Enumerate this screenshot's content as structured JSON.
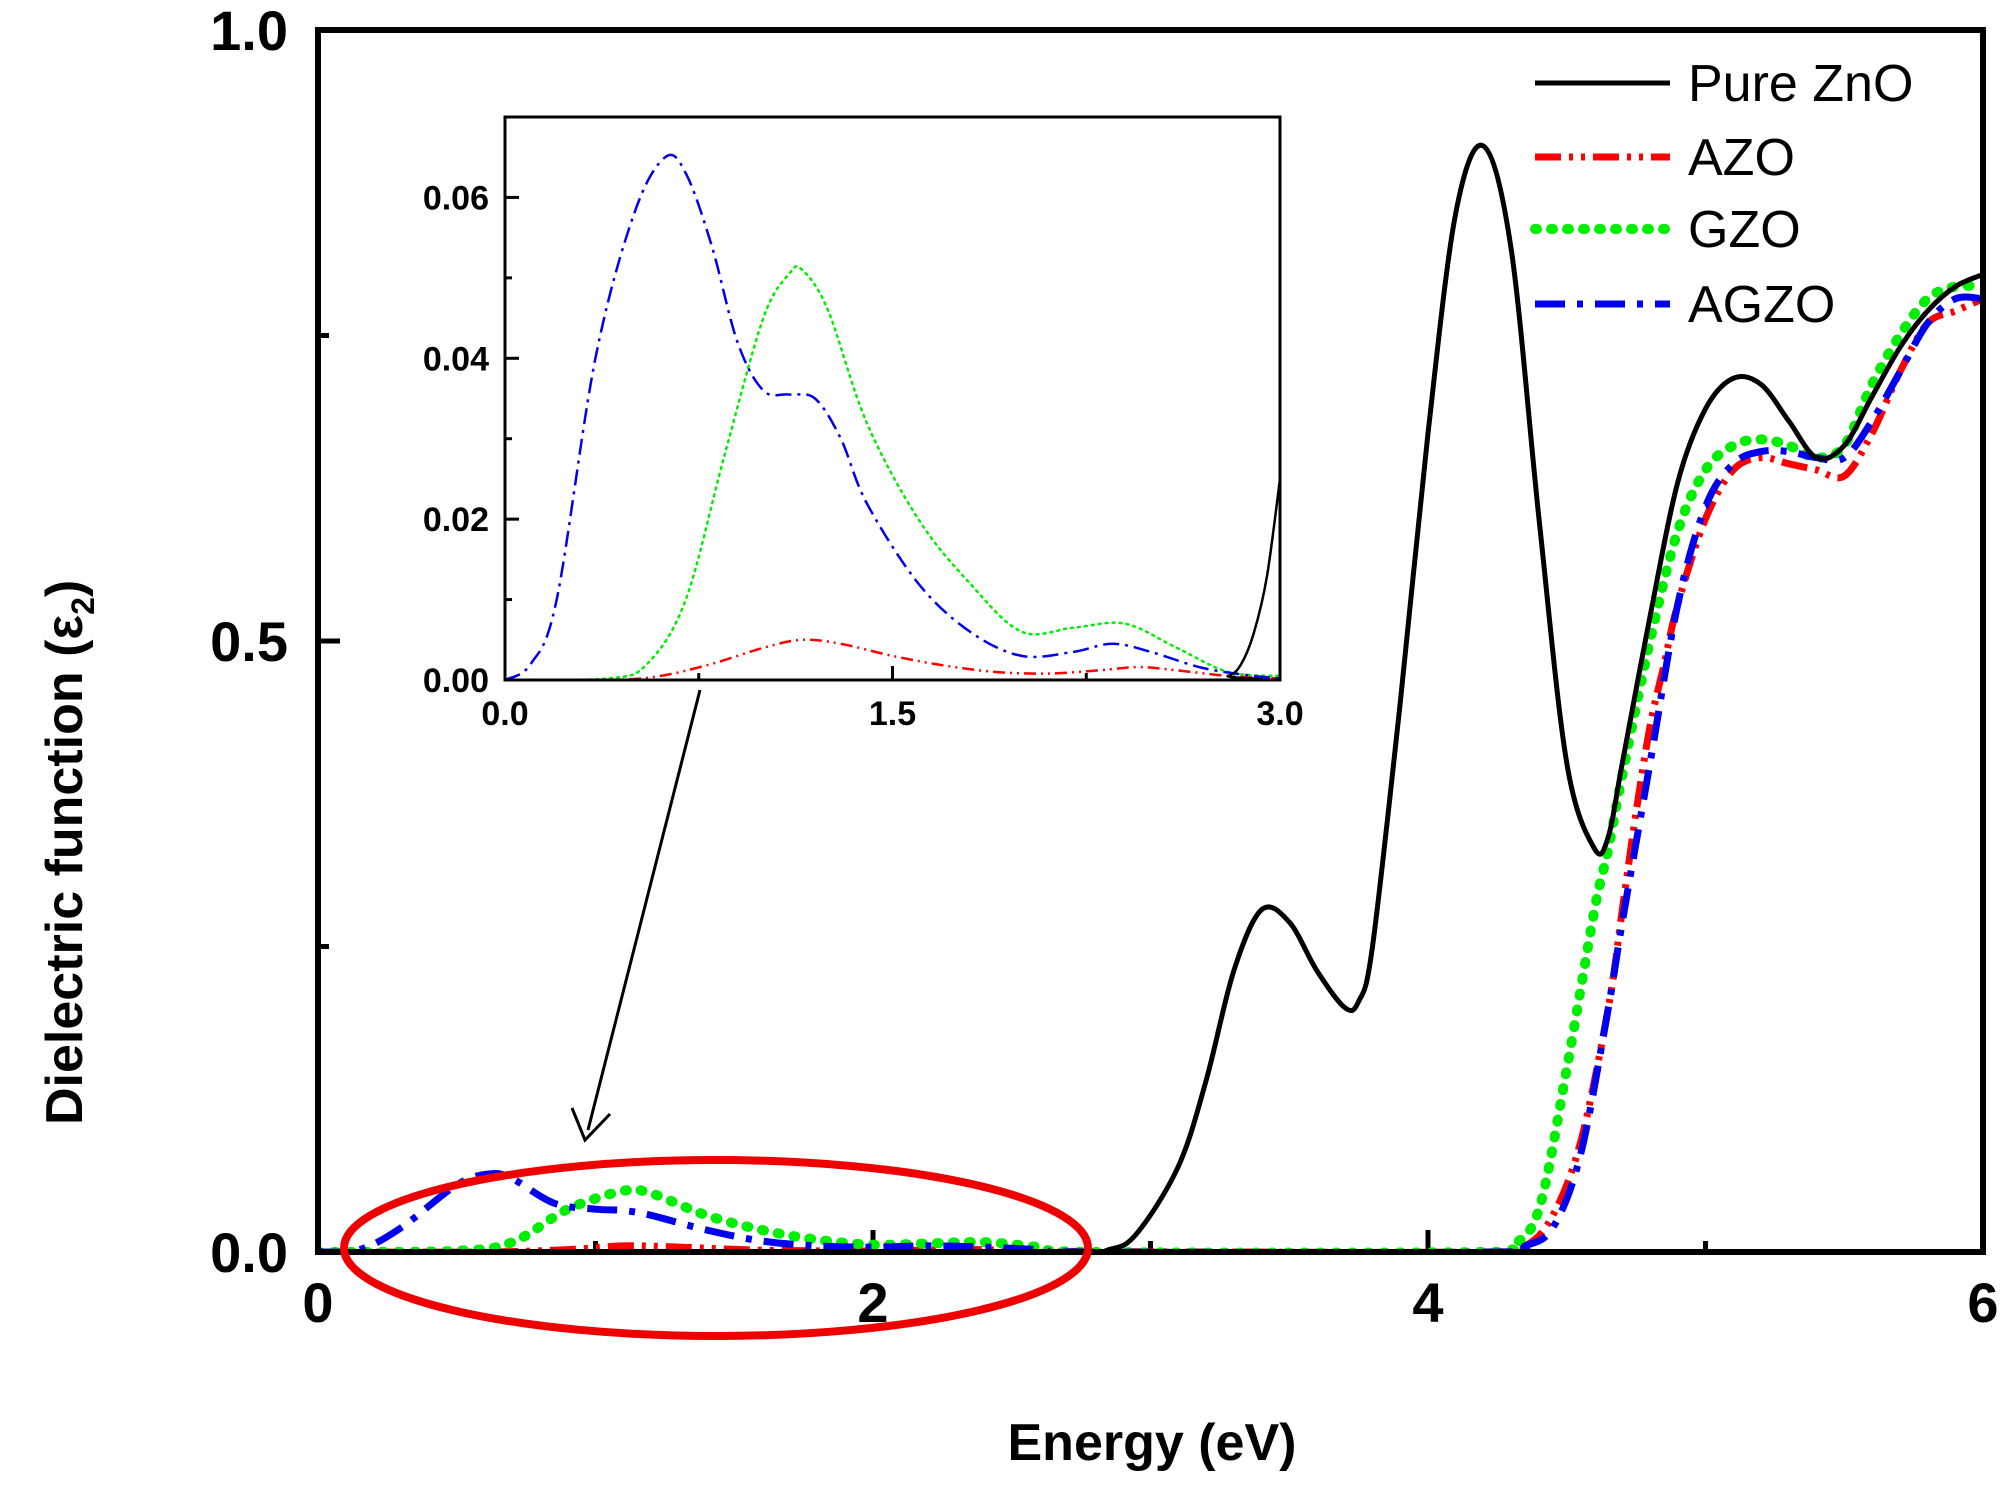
{
  "chart_data": [
    {
      "type": "line",
      "role": "main",
      "xlabel": "Energy (eV)",
      "ylabel_main": "Dielectric function (ε",
      "ylabel_sub": "2",
      "ylabel_close": ")",
      "xlim": [
        0,
        6
      ],
      "ylim": [
        0,
        1.0
      ],
      "xticks": [
        0,
        2,
        4,
        6
      ],
      "xtick_labels": [
        "0",
        "2",
        "4",
        "6"
      ],
      "yticks": [
        0.0,
        0.5,
        1.0
      ],
      "ytick_labels": [
        "0.0",
        "0.5",
        "1.0"
      ],
      "legend_position": "top-right",
      "series": [
        {
          "name": "Pure ZnO",
          "color": "#000000",
          "dash": "solid",
          "x": [
            0.0,
            2.7,
            2.85,
            2.95,
            3.1,
            3.2,
            3.3,
            3.4,
            3.5,
            3.6,
            3.7,
            3.75,
            3.8,
            3.9,
            4.0,
            4.1,
            4.2,
            4.3,
            4.4,
            4.5,
            4.6,
            4.65,
            4.7,
            4.8,
            4.9,
            5.0,
            5.1,
            5.2,
            5.3,
            5.4,
            5.5,
            5.6,
            5.7,
            5.8,
            5.9,
            6.0
          ],
          "y": [
            0.0,
            0.0,
            0.002,
            0.015,
            0.07,
            0.14,
            0.23,
            0.28,
            0.27,
            0.23,
            0.2,
            0.205,
            0.25,
            0.45,
            0.67,
            0.85,
            0.905,
            0.82,
            0.6,
            0.4,
            0.33,
            0.34,
            0.4,
            0.52,
            0.63,
            0.69,
            0.715,
            0.71,
            0.68,
            0.65,
            0.66,
            0.7,
            0.74,
            0.77,
            0.79,
            0.8
          ]
        },
        {
          "name": "AZO",
          "color": "#ff0000",
          "dash": "dash-dot-dot",
          "x": [
            0.0,
            0.6,
            0.9,
            1.1,
            1.3,
            1.6,
            2.0,
            2.3,
            2.5,
            2.7,
            4.2,
            4.35,
            4.45,
            4.55,
            4.65,
            4.7,
            4.75,
            4.8,
            4.85,
            4.9,
            5.0,
            5.1,
            5.2,
            5.3,
            5.4,
            5.5,
            5.6,
            5.7,
            5.8,
            5.9,
            6.0
          ],
          "y": [
            0.0,
            0.0,
            0.002,
            0.005,
            0.004,
            0.0015,
            0.0008,
            0.002,
            0.0015,
            0.0005,
            0.0,
            0.005,
            0.03,
            0.09,
            0.2,
            0.28,
            0.36,
            0.43,
            0.48,
            0.53,
            0.6,
            0.64,
            0.65,
            0.645,
            0.64,
            0.635,
            0.67,
            0.72,
            0.76,
            0.77,
            0.78
          ]
        },
        {
          "name": "GZO",
          "color": "#00ee00",
          "dash": "dot",
          "x": [
            0.0,
            0.5,
            0.7,
            0.9,
            1.1,
            1.2,
            1.4,
            1.6,
            1.8,
            2.0,
            2.2,
            2.4,
            2.6,
            2.8,
            4.2,
            4.3,
            4.4,
            4.5,
            4.6,
            4.65,
            4.7,
            4.8,
            4.9,
            5.0,
            5.1,
            5.2,
            5.3,
            5.4,
            5.5,
            5.6,
            5.7,
            5.8,
            5.9,
            6.0
          ],
          "y": [
            0.0,
            0.001,
            0.008,
            0.035,
            0.05,
            0.048,
            0.03,
            0.018,
            0.01,
            0.006,
            0.007,
            0.008,
            0.004,
            0.0,
            0.0,
            0.005,
            0.035,
            0.15,
            0.28,
            0.33,
            0.39,
            0.5,
            0.59,
            0.64,
            0.66,
            0.665,
            0.66,
            0.65,
            0.66,
            0.71,
            0.75,
            0.78,
            0.79,
            0.79
          ]
        },
        {
          "name": "AGZO",
          "color": "#0000ee",
          "dash": "dash-dot",
          "x": [
            0.0,
            0.15,
            0.3,
            0.5,
            0.62,
            0.7,
            0.85,
            1.0,
            1.1,
            1.2,
            1.4,
            1.6,
            1.8,
            2.0,
            2.2,
            2.4,
            2.6,
            2.8,
            4.25,
            4.35,
            4.45,
            4.55,
            4.65,
            4.7,
            4.8,
            4.9,
            5.0,
            5.1,
            5.2,
            5.3,
            5.4,
            5.5,
            5.6,
            5.7,
            5.8,
            5.9,
            6.0
          ],
          "y": [
            0.0,
            0.002,
            0.02,
            0.055,
            0.064,
            0.06,
            0.04,
            0.035,
            0.034,
            0.03,
            0.018,
            0.009,
            0.005,
            0.004,
            0.005,
            0.004,
            0.002,
            0.0,
            0.0,
            0.005,
            0.02,
            0.08,
            0.2,
            0.27,
            0.4,
            0.53,
            0.61,
            0.645,
            0.655,
            0.655,
            0.65,
            0.65,
            0.68,
            0.72,
            0.76,
            0.78,
            0.78
          ]
        }
      ]
    },
    {
      "type": "line",
      "role": "inset",
      "xlim": [
        0,
        3
      ],
      "ylim": [
        0,
        0.07
      ],
      "xticks": [
        0,
        1.5,
        3.0
      ],
      "xtick_labels": [
        "0.0",
        "1.5",
        "3.0"
      ],
      "yticks": [
        0,
        0.02,
        0.04,
        0.06
      ],
      "ytick_labels": [
        "0.00",
        "0.02",
        "0.04",
        "0.06"
      ],
      "series": [
        {
          "name": "Pure ZnO",
          "color": "#000000",
          "dash": "solid",
          "x": [
            0.0,
            2.7,
            2.8,
            2.85,
            2.9,
            2.95,
            3.0
          ],
          "y": [
            0.0,
            0.0,
            0.0005,
            0.002,
            0.006,
            0.013,
            0.025
          ]
        },
        {
          "name": "AZO",
          "color": "#ff0000",
          "dash": "dash-dot-dot",
          "x": [
            0.0,
            0.4,
            0.6,
            0.8,
            1.0,
            1.15,
            1.3,
            1.5,
            1.7,
            1.9,
            2.1,
            2.3,
            2.45,
            2.6,
            2.8,
            3.0
          ],
          "y": [
            0.0,
            0.0,
            0.0005,
            0.002,
            0.004,
            0.005,
            0.0045,
            0.003,
            0.0018,
            0.001,
            0.0008,
            0.0012,
            0.0016,
            0.0012,
            0.0005,
            0.0002
          ]
        },
        {
          "name": "GZO",
          "color": "#00ee00",
          "dash": "dot",
          "x": [
            0.0,
            0.4,
            0.55,
            0.7,
            0.85,
            1.0,
            1.1,
            1.15,
            1.25,
            1.4,
            1.6,
            1.8,
            2.0,
            2.2,
            2.4,
            2.6,
            2.8,
            3.0
          ],
          "y": [
            0.0,
            0.0002,
            0.002,
            0.01,
            0.028,
            0.045,
            0.0505,
            0.051,
            0.046,
            0.032,
            0.02,
            0.012,
            0.006,
            0.0065,
            0.007,
            0.004,
            0.001,
            0.0005
          ]
        },
        {
          "name": "AGZO",
          "color": "#0000ee",
          "dash": "dash-dot",
          "x": [
            0.0,
            0.1,
            0.2,
            0.35,
            0.5,
            0.62,
            0.7,
            0.8,
            0.9,
            1.0,
            1.1,
            1.2,
            1.3,
            1.4,
            1.6,
            1.8,
            2.0,
            2.2,
            2.35,
            2.5,
            2.7,
            2.9,
            3.0
          ],
          "y": [
            0.0,
            0.002,
            0.01,
            0.04,
            0.058,
            0.065,
            0.063,
            0.054,
            0.042,
            0.036,
            0.0355,
            0.035,
            0.03,
            0.022,
            0.012,
            0.006,
            0.003,
            0.0035,
            0.0045,
            0.0035,
            0.0015,
            0.0005,
            0.0002
          ]
        }
      ]
    }
  ],
  "annotation": {
    "ellipse_color": "#ee0000",
    "arrow_color": "#000000"
  }
}
